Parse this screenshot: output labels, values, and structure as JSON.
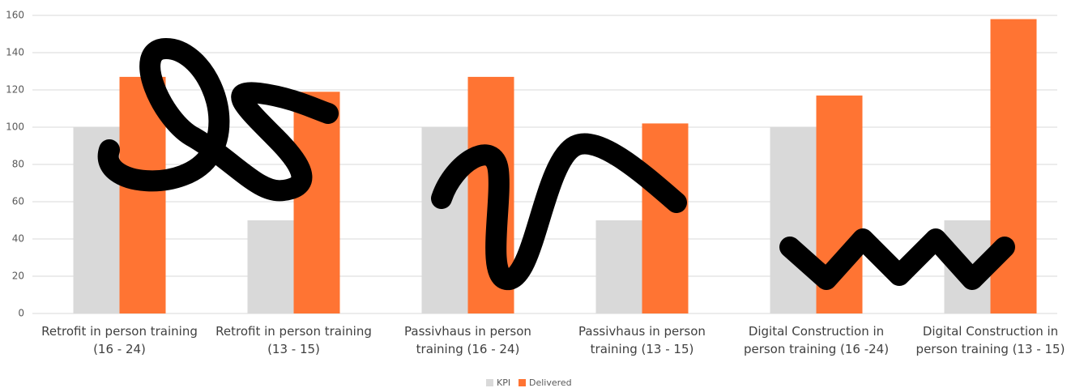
{
  "chart_data": {
    "type": "bar",
    "categories": [
      "Retrofit in person training\n(16 - 24)",
      "Retrofit in person training\n(13 - 15)",
      "Passivhaus in person\ntraining (16 - 24)",
      "Passivhaus in person\ntraining (13 - 15)",
      "Digital Construction in\nperson training (16 -24)",
      "Digital Construction in\nperson training (13 - 15)"
    ],
    "series": [
      {
        "name": "KPI",
        "color": "#d9d9d9",
        "values": [
          100,
          50,
          100,
          50,
          100,
          50
        ]
      },
      {
        "name": "Delivered",
        "color": "#ff7433",
        "values": [
          127,
          119,
          127,
          102,
          117,
          158
        ]
      }
    ],
    "ylim": [
      0,
      160
    ],
    "yticks": [
      0,
      20,
      40,
      60,
      80,
      100,
      120,
      140,
      160
    ],
    "grid": true,
    "legend": "bottom"
  }
}
